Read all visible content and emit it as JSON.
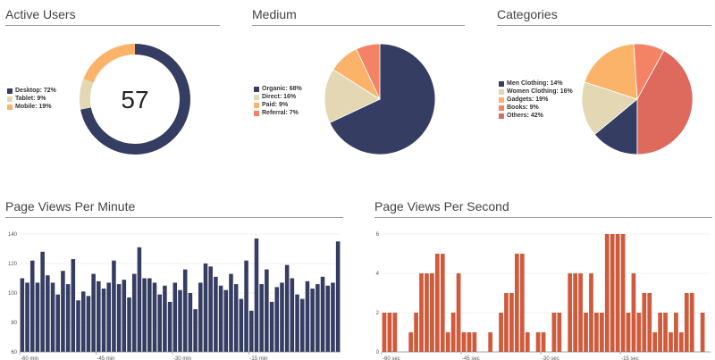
{
  "chart_data": [
    {
      "id": "active",
      "type": "pie",
      "variant": "donut",
      "title": "Active Users",
      "center_value": "57",
      "slices": [
        {
          "label": "Desktop: 72%",
          "value": 72,
          "color": "#363d63"
        },
        {
          "label": "Tablet: 9%",
          "value": 9,
          "color": "#e3d8b3"
        },
        {
          "label": "Mobile: 19%",
          "value": 19,
          "color": "#fbb36a"
        }
      ]
    },
    {
      "id": "medium",
      "type": "pie",
      "title": "Medium",
      "slices": [
        {
          "label": "Organic: 68%",
          "value": 68,
          "color": "#363d63"
        },
        {
          "label": "Direct: 16%",
          "value": 16,
          "color": "#e3d8b3"
        },
        {
          "label": "Paid: 9%",
          "value": 9,
          "color": "#fbb36a"
        },
        {
          "label": "Referral: 7%",
          "value": 7,
          "color": "#f48366"
        }
      ]
    },
    {
      "id": "categories",
      "type": "pie",
      "title": "Categories",
      "slices": [
        {
          "label": "Men Clothing: 14%",
          "value": 14,
          "color": "#363d63"
        },
        {
          "label": "Women Clothing: 16%",
          "value": 16,
          "color": "#e3d8b3"
        },
        {
          "label": "Gadgets: 19%",
          "value": 19,
          "color": "#fbb36a"
        },
        {
          "label": "Books: 9%",
          "value": 9,
          "color": "#f48366"
        },
        {
          "label": "Others: 42%",
          "value": 42,
          "color": "#dd6a5c"
        }
      ]
    },
    {
      "id": "ppm",
      "type": "bar",
      "title": "Page Views Per Minute",
      "color": "#363d63",
      "ylim": [
        60,
        140
      ],
      "yticks": [
        60,
        80,
        100,
        120,
        140
      ],
      "xticks": [
        {
          "pos": 0,
          "label": "-60 min"
        },
        {
          "pos": 15,
          "label": "-45 min"
        },
        {
          "pos": 30,
          "label": "-30 min"
        },
        {
          "pos": 45,
          "label": "-15 min"
        }
      ],
      "values": [
        110,
        107,
        122,
        107,
        128,
        112,
        107,
        99,
        115,
        106,
        123,
        95,
        101,
        98,
        113,
        108,
        103,
        107,
        122,
        106,
        109,
        97,
        113,
        131,
        110,
        110,
        107,
        99,
        105,
        94,
        107,
        102,
        116,
        100,
        89,
        107,
        120,
        118,
        111,
        105,
        102,
        113,
        106,
        96,
        122,
        88,
        137,
        106,
        116,
        94,
        104,
        107,
        119,
        110,
        99,
        96,
        108,
        103,
        106,
        111,
        105,
        107,
        135
      ]
    },
    {
      "id": "pps",
      "type": "bar",
      "title": "Page Views Per Second",
      "color": "#cf5b3c",
      "ylim": [
        0,
        6
      ],
      "yticks": [
        0,
        2,
        4,
        6
      ],
      "xticks": [
        {
          "pos": 0,
          "label": "-60 sec"
        },
        {
          "pos": 15,
          "label": "-45 sec"
        },
        {
          "pos": 30,
          "label": "-30 sec"
        },
        {
          "pos": 45,
          "label": "-15 sec"
        }
      ],
      "values": [
        2,
        2,
        2,
        0,
        0,
        1,
        2,
        4,
        4,
        4,
        5,
        5,
        1,
        2,
        4,
        1,
        1,
        1,
        0,
        0,
        1,
        0,
        2,
        3,
        3,
        5,
        5,
        1,
        0,
        1,
        1,
        0,
        2,
        2,
        0,
        4,
        4,
        4,
        2,
        4,
        2,
        2,
        6,
        6,
        6,
        6,
        2,
        4,
        2,
        3,
        3,
        1,
        2,
        2,
        1,
        2,
        1,
        3,
        3,
        0,
        2,
        0
      ]
    }
  ]
}
